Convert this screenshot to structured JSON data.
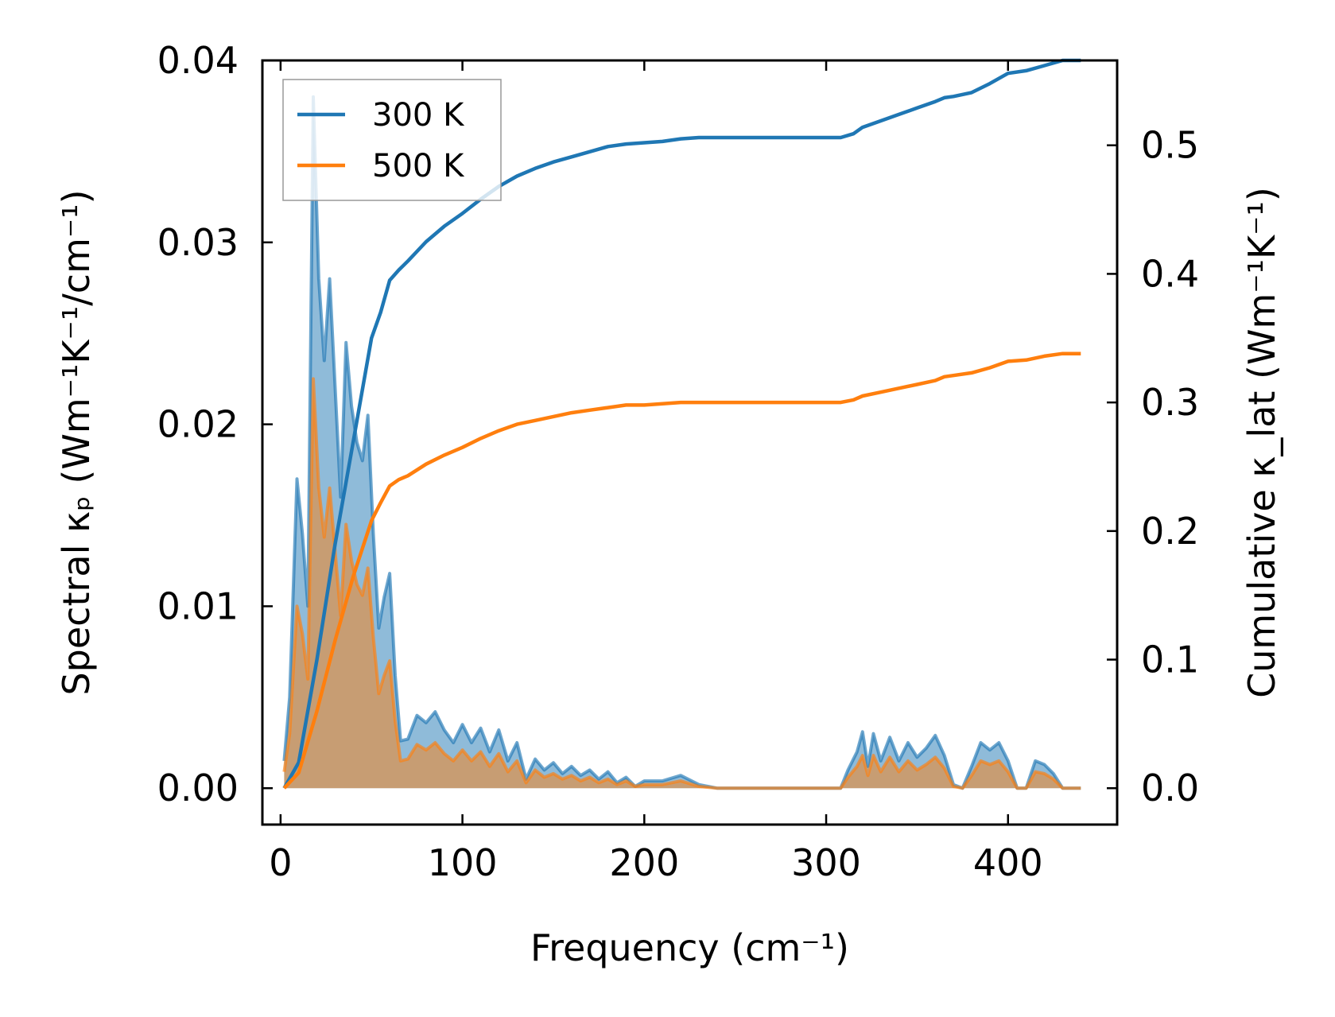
{
  "chart_data": {
    "type": "line",
    "xlabel": "Frequency (cm⁻¹)",
    "ylabel_left": "Spectral κₚ (Wm⁻¹K⁻¹/cm⁻¹)",
    "ylabel_right": "Cumulative κ_lat (Wm⁻¹K⁻¹)",
    "xlim": [
      -10,
      460
    ],
    "ylim_left": [
      -0.002,
      0.04
    ],
    "ylim_right": [
      -0.0283,
      0.566
    ],
    "x_ticks": [
      0,
      100,
      200,
      300,
      400
    ],
    "x_tick_labels": [
      "0",
      "100",
      "200",
      "300",
      "400"
    ],
    "y_left_ticks": [
      0.0,
      0.01,
      0.02,
      0.03,
      0.04
    ],
    "y_left_tick_labels": [
      "0.00",
      "0.01",
      "0.02",
      "0.03",
      "0.04"
    ],
    "y_right_ticks": [
      0.0,
      0.1,
      0.2,
      0.3,
      0.4,
      0.5
    ],
    "y_right_tick_labels": [
      "0.0",
      "0.1",
      "0.2",
      "0.3",
      "0.4",
      "0.5"
    ],
    "legend": {
      "position": "top-left",
      "entries": [
        "300 K",
        "500 K"
      ]
    },
    "grid": false,
    "series": [
      {
        "name": "300 K",
        "color": "#1f77b4",
        "spectral": {
          "x": [
            2,
            5,
            9,
            12,
            15,
            18,
            21,
            24,
            27,
            30,
            33,
            36,
            39,
            42,
            45,
            48,
            51,
            54,
            57,
            60,
            63,
            66,
            70,
            75,
            80,
            85,
            90,
            95,
            100,
            105,
            110,
            115,
            120,
            125,
            130,
            135,
            140,
            145,
            150,
            155,
            160,
            165,
            170,
            175,
            180,
            185,
            190,
            195,
            200,
            210,
            220,
            230,
            240,
            250,
            270,
            290,
            308,
            312,
            317,
            320,
            323,
            326,
            330,
            335,
            340,
            345,
            350,
            355,
            360,
            365,
            370,
            375,
            380,
            385,
            390,
            395,
            400,
            405,
            410,
            415,
            420,
            425,
            430,
            440
          ],
          "y": [
            0.0015,
            0.005,
            0.017,
            0.014,
            0.01,
            0.038,
            0.028,
            0.0235,
            0.028,
            0.022,
            0.016,
            0.0245,
            0.021,
            0.019,
            0.018,
            0.0205,
            0.014,
            0.0088,
            0.0105,
            0.0118,
            0.0062,
            0.0026,
            0.0027,
            0.004,
            0.0036,
            0.0042,
            0.0032,
            0.0025,
            0.0035,
            0.0025,
            0.0033,
            0.002,
            0.0032,
            0.0015,
            0.0025,
            0.0005,
            0.0016,
            0.001,
            0.0014,
            0.0008,
            0.0012,
            0.0007,
            0.001,
            0.0005,
            0.0009,
            0.0003,
            0.0006,
            0.0001,
            0.0004,
            0.0004,
            0.0007,
            0.0002,
            0.0,
            0.0,
            0.0,
            0.0,
            0.0,
            0.001,
            0.002,
            0.0031,
            0.0012,
            0.003,
            0.0015,
            0.0028,
            0.0015,
            0.0025,
            0.0017,
            0.0022,
            0.0029,
            0.0018,
            0.0002,
            0.0,
            0.0012,
            0.0025,
            0.0021,
            0.0025,
            0.0015,
            0.0,
            0.0,
            0.0015,
            0.0013,
            0.0008,
            0.0,
            0.0
          ]
        },
        "cumulative": {
          "x": [
            2,
            10,
            20,
            30,
            40,
            50,
            55,
            60,
            65,
            70,
            80,
            90,
            100,
            110,
            120,
            130,
            140,
            150,
            160,
            170,
            180,
            190,
            200,
            210,
            220,
            230,
            240,
            260,
            280,
            300,
            308,
            315,
            320,
            330,
            340,
            350,
            360,
            365,
            370,
            380,
            390,
            400,
            410,
            420,
            430,
            440
          ],
          "y": [
            0.0,
            0.02,
            0.1,
            0.19,
            0.27,
            0.35,
            0.37,
            0.395,
            0.403,
            0.41,
            0.425,
            0.437,
            0.447,
            0.458,
            0.468,
            0.476,
            0.482,
            0.487,
            0.491,
            0.495,
            0.499,
            0.501,
            0.502,
            0.503,
            0.505,
            0.506,
            0.506,
            0.506,
            0.506,
            0.506,
            0.506,
            0.509,
            0.514,
            0.519,
            0.524,
            0.529,
            0.534,
            0.537,
            0.538,
            0.541,
            0.548,
            0.556,
            0.558,
            0.562,
            0.566,
            0.566
          ]
        }
      },
      {
        "name": "500 K",
        "color": "#ff7f0e",
        "spectral": {
          "x": [
            2,
            5,
            9,
            12,
            15,
            18,
            21,
            24,
            27,
            30,
            33,
            36,
            39,
            42,
            45,
            48,
            51,
            54,
            57,
            60,
            63,
            66,
            70,
            75,
            80,
            85,
            90,
            95,
            100,
            105,
            110,
            115,
            120,
            125,
            130,
            135,
            140,
            145,
            150,
            155,
            160,
            165,
            170,
            175,
            180,
            185,
            190,
            195,
            200,
            210,
            220,
            230,
            240,
            250,
            270,
            290,
            308,
            312,
            317,
            320,
            323,
            326,
            330,
            335,
            340,
            345,
            350,
            355,
            360,
            365,
            370,
            375,
            380,
            385,
            390,
            395,
            400,
            405,
            410,
            415,
            420,
            425,
            430,
            440
          ],
          "y": [
            0.0009,
            0.003,
            0.01,
            0.0085,
            0.006,
            0.0225,
            0.0165,
            0.0138,
            0.0165,
            0.013,
            0.0095,
            0.0145,
            0.0125,
            0.0112,
            0.0106,
            0.0121,
            0.0083,
            0.0052,
            0.0062,
            0.007,
            0.0037,
            0.0015,
            0.0016,
            0.0024,
            0.0021,
            0.0025,
            0.0019,
            0.0015,
            0.0021,
            0.0015,
            0.002,
            0.0012,
            0.0019,
            0.0009,
            0.0015,
            0.0003,
            0.001,
            0.0006,
            0.0008,
            0.0005,
            0.0007,
            0.0004,
            0.0006,
            0.0003,
            0.0005,
            0.0002,
            0.0004,
            0.0001,
            0.0002,
            0.0002,
            0.0004,
            0.0001,
            0.0,
            0.0,
            0.0,
            0.0,
            0.0,
            0.0006,
            0.0012,
            0.0018,
            0.0007,
            0.0018,
            0.0009,
            0.0017,
            0.0009,
            0.0015,
            0.001,
            0.0013,
            0.0017,
            0.0011,
            0.0001,
            0.0,
            0.0007,
            0.0015,
            0.0013,
            0.0015,
            0.0009,
            0.0,
            0.0,
            0.0009,
            0.0008,
            0.0005,
            0.0,
            0.0
          ]
        },
        "cumulative": {
          "x": [
            2,
            10,
            20,
            30,
            40,
            50,
            55,
            60,
            65,
            70,
            80,
            90,
            100,
            110,
            120,
            130,
            140,
            150,
            160,
            170,
            180,
            190,
            200,
            210,
            220,
            230,
            240,
            260,
            280,
            300,
            308,
            315,
            320,
            330,
            340,
            350,
            360,
            365,
            370,
            380,
            390,
            400,
            410,
            420,
            430,
            440
          ],
          "y": [
            0.0,
            0.012,
            0.06,
            0.115,
            0.165,
            0.208,
            0.222,
            0.235,
            0.24,
            0.243,
            0.252,
            0.259,
            0.265,
            0.272,
            0.278,
            0.283,
            0.286,
            0.289,
            0.292,
            0.294,
            0.296,
            0.298,
            0.298,
            0.299,
            0.3,
            0.3,
            0.3,
            0.3,
            0.3,
            0.3,
            0.3,
            0.302,
            0.305,
            0.308,
            0.311,
            0.314,
            0.317,
            0.32,
            0.321,
            0.323,
            0.327,
            0.332,
            0.333,
            0.336,
            0.338,
            0.338
          ]
        }
      }
    ]
  }
}
